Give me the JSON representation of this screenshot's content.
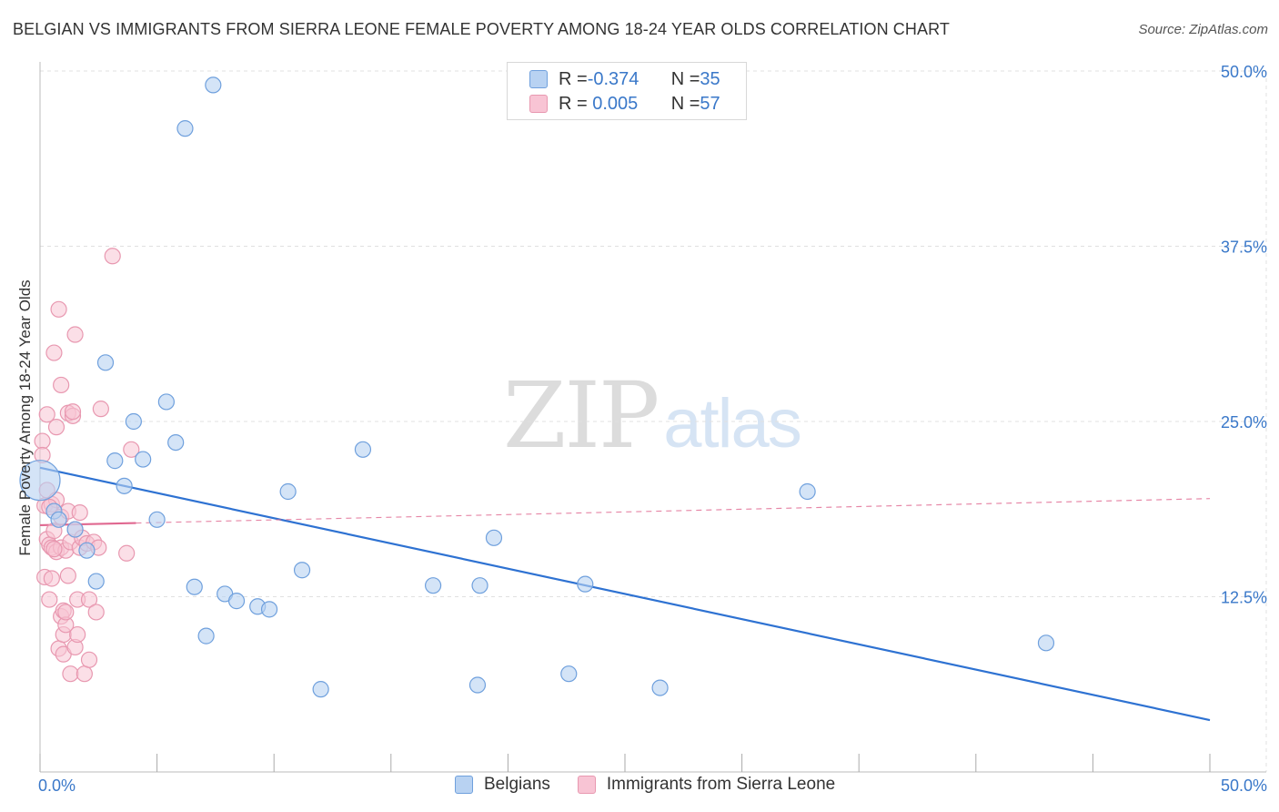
{
  "header": {
    "title": "BELGIAN VS IMMIGRANTS FROM SIERRA LEONE FEMALE POVERTY AMONG 18-24 YEAR OLDS CORRELATION CHART",
    "source": "Source: ZipAtlas.com"
  },
  "watermark": {
    "zip": "ZIP",
    "atlas": "atlas"
  },
  "legend": {
    "rows": [
      {
        "r_label": "R = ",
        "r_value": "-0.374",
        "n_label": "N = ",
        "n_value": "35"
      },
      {
        "r_label": "R = ",
        "r_value": " 0.005",
        "n_label": "N = ",
        "n_value": "57"
      }
    ]
  },
  "colors": {
    "blue_fill": "#b8d2f2",
    "blue_stroke": "#6fa0dd",
    "blue_line": "#2e72d2",
    "pink_fill": "#f8c4d4",
    "pink_stroke": "#e898b0",
    "pink_line": "#e06890",
    "axis_text": "#3a78c9",
    "grid": "#e0e0e0"
  },
  "chart_data": {
    "type": "scatter",
    "title": "BELGIAN VS IMMIGRANTS FROM SIERRA LEONE FEMALE POVERTY AMONG 18-24 YEAR OLDS CORRELATION CHART",
    "xlabel": "",
    "ylabel": "Female Poverty Among 18-24 Year Olds",
    "xlim": [
      0,
      50
    ],
    "ylim": [
      0,
      50
    ],
    "x_tick_labels": [
      "0.0%",
      "50.0%"
    ],
    "y_ticks": [
      12.5,
      25.0,
      37.5,
      50.0
    ],
    "y_tick_labels": [
      "12.5%",
      "25.0%",
      "37.5%",
      "50.0%"
    ],
    "grid": true,
    "legend_position": "top-center",
    "series": [
      {
        "name": "Belgians",
        "color": "blue",
        "r": -0.374,
        "n": 35,
        "trend": {
          "x": [
            0,
            50
          ],
          "y": [
            21.7,
            3.7
          ]
        },
        "points": [
          {
            "x": 0.0,
            "y": 20.8,
            "big": true
          },
          {
            "x": 0.6,
            "y": 18.6
          },
          {
            "x": 0.8,
            "y": 18.0
          },
          {
            "x": 1.5,
            "y": 17.3
          },
          {
            "x": 2.0,
            "y": 15.8
          },
          {
            "x": 2.4,
            "y": 13.6
          },
          {
            "x": 2.8,
            "y": 29.2
          },
          {
            "x": 3.2,
            "y": 22.2
          },
          {
            "x": 3.6,
            "y": 20.4
          },
          {
            "x": 4.0,
            "y": 25.0
          },
          {
            "x": 4.4,
            "y": 22.3
          },
          {
            "x": 5.0,
            "y": 18.0
          },
          {
            "x": 5.4,
            "y": 26.4
          },
          {
            "x": 5.8,
            "y": 23.5
          },
          {
            "x": 6.2,
            "y": 45.9
          },
          {
            "x": 6.6,
            "y": 13.2
          },
          {
            "x": 7.1,
            "y": 9.7
          },
          {
            "x": 7.4,
            "y": 49.0
          },
          {
            "x": 7.9,
            "y": 12.7
          },
          {
            "x": 8.4,
            "y": 12.2
          },
          {
            "x": 9.3,
            "y": 11.8
          },
          {
            "x": 9.8,
            "y": 11.6
          },
          {
            "x": 10.6,
            "y": 20.0
          },
          {
            "x": 11.2,
            "y": 14.4
          },
          {
            "x": 12.0,
            "y": 5.9
          },
          {
            "x": 13.8,
            "y": 23.0
          },
          {
            "x": 16.8,
            "y": 13.3
          },
          {
            "x": 18.7,
            "y": 6.2
          },
          {
            "x": 18.8,
            "y": 13.3
          },
          {
            "x": 19.4,
            "y": 16.7
          },
          {
            "x": 22.6,
            "y": 7.0
          },
          {
            "x": 23.3,
            "y": 13.4
          },
          {
            "x": 26.5,
            "y": 6.0
          },
          {
            "x": 32.8,
            "y": 20.0
          },
          {
            "x": 43.0,
            "y": 9.2
          }
        ]
      },
      {
        "name": "Immigrants from Sierra Leone",
        "color": "pink",
        "r": 0.005,
        "n": 57,
        "trend": {
          "x": [
            0,
            50
          ],
          "y": [
            17.6,
            19.5
          ],
          "solid_until": 4.1
        },
        "points": [
          {
            "x": 0.1,
            "y": 23.6
          },
          {
            "x": 0.1,
            "y": 22.6
          },
          {
            "x": 0.2,
            "y": 19.0
          },
          {
            "x": 0.2,
            "y": 13.9
          },
          {
            "x": 0.3,
            "y": 25.5
          },
          {
            "x": 0.3,
            "y": 20.1
          },
          {
            "x": 0.3,
            "y": 16.6
          },
          {
            "x": 0.4,
            "y": 16.2
          },
          {
            "x": 0.4,
            "y": 12.3
          },
          {
            "x": 0.5,
            "y": 19.1
          },
          {
            "x": 0.5,
            "y": 16.0
          },
          {
            "x": 0.5,
            "y": 13.8
          },
          {
            "x": 0.6,
            "y": 29.9
          },
          {
            "x": 0.6,
            "y": 17.2
          },
          {
            "x": 0.7,
            "y": 24.6
          },
          {
            "x": 0.7,
            "y": 19.4
          },
          {
            "x": 0.7,
            "y": 15.7
          },
          {
            "x": 0.8,
            "y": 33.0
          },
          {
            "x": 0.8,
            "y": 8.8
          },
          {
            "x": 0.9,
            "y": 27.6
          },
          {
            "x": 0.9,
            "y": 18.2
          },
          {
            "x": 0.9,
            "y": 16.0
          },
          {
            "x": 0.9,
            "y": 11.1
          },
          {
            "x": 1.0,
            "y": 11.5
          },
          {
            "x": 1.0,
            "y": 8.4
          },
          {
            "x": 1.0,
            "y": 9.8
          },
          {
            "x": 1.1,
            "y": 10.5
          },
          {
            "x": 1.1,
            "y": 15.8
          },
          {
            "x": 1.1,
            "y": 11.4
          },
          {
            "x": 1.2,
            "y": 25.6
          },
          {
            "x": 1.2,
            "y": 18.6
          },
          {
            "x": 1.2,
            "y": 14.0
          },
          {
            "x": 1.3,
            "y": 7.0
          },
          {
            "x": 1.3,
            "y": 16.4
          },
          {
            "x": 1.4,
            "y": 25.4
          },
          {
            "x": 1.5,
            "y": 8.9
          },
          {
            "x": 1.5,
            "y": 17.3
          },
          {
            "x": 1.5,
            "y": 31.2
          },
          {
            "x": 1.6,
            "y": 9.8
          },
          {
            "x": 1.6,
            "y": 12.3
          },
          {
            "x": 1.7,
            "y": 18.5
          },
          {
            "x": 1.7,
            "y": 16.0
          },
          {
            "x": 1.8,
            "y": 16.7
          },
          {
            "x": 1.9,
            "y": 7.0
          },
          {
            "x": 2.0,
            "y": 16.3
          },
          {
            "x": 2.1,
            "y": 12.3
          },
          {
            "x": 2.1,
            "y": 8.0
          },
          {
            "x": 2.3,
            "y": 16.4
          },
          {
            "x": 2.4,
            "y": 11.4
          },
          {
            "x": 2.5,
            "y": 16.0
          },
          {
            "x": 2.6,
            "y": 25.9
          },
          {
            "x": 3.1,
            "y": 36.8
          },
          {
            "x": 3.7,
            "y": 15.6
          },
          {
            "x": 3.9,
            "y": 23.0
          },
          {
            "x": 0.6,
            "y": 15.9
          },
          {
            "x": 1.4,
            "y": 25.7
          },
          {
            "x": 0.4,
            "y": 18.9
          }
        ]
      }
    ]
  }
}
